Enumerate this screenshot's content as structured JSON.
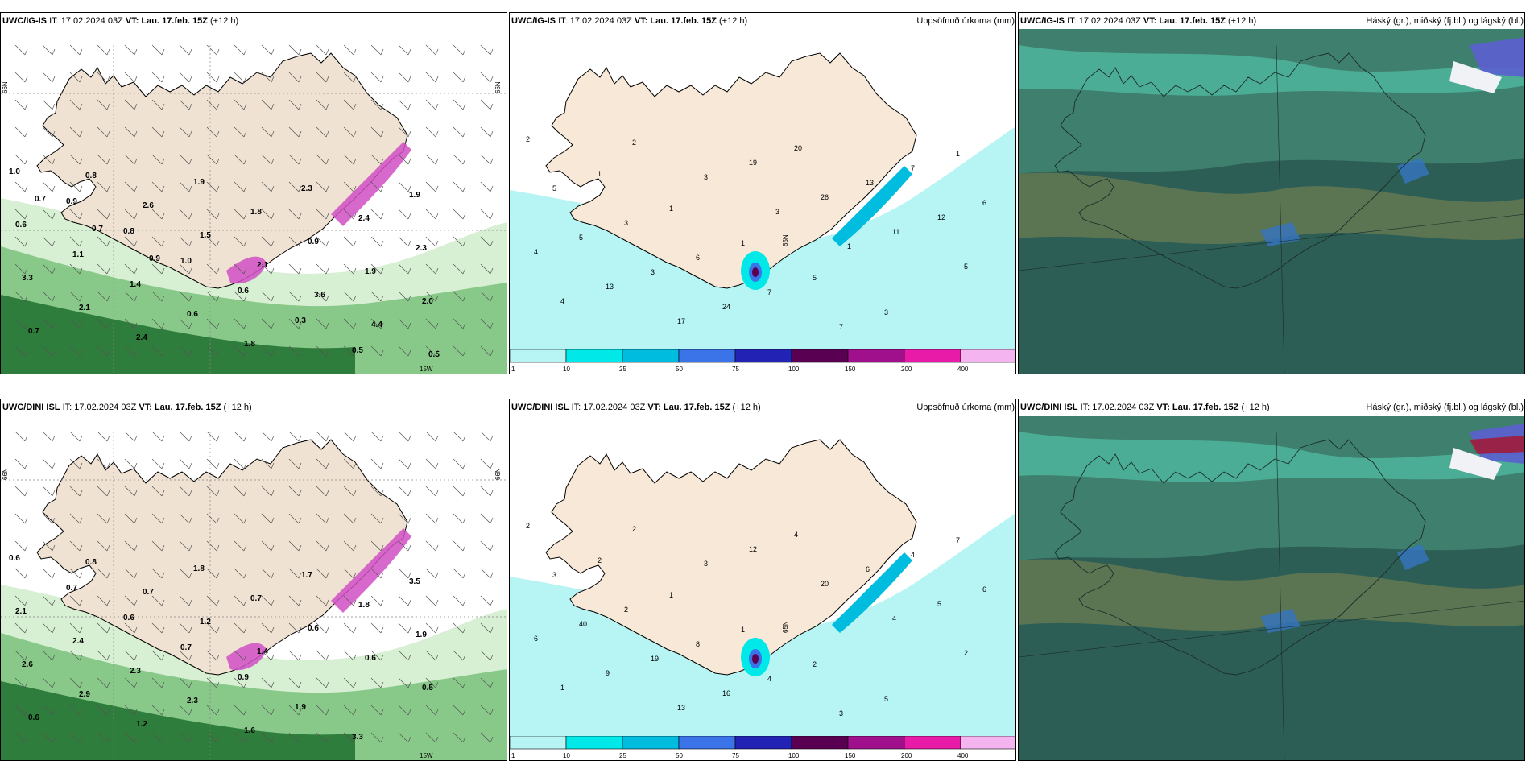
{
  "panels": [
    {
      "model": "UWC/IG-IS",
      "it": "IT: 17.02.2024 03Z",
      "vt_label": "VT:",
      "vt": "Lau. 17.feb. 15Z",
      "lead": "(+12 h)",
      "right": ""
    },
    {
      "model": "UWC/IG-IS",
      "it": "IT: 17.02.2024 03Z",
      "vt_label": "VT:",
      "vt": "Lau. 17.feb. 15Z",
      "lead": "(+12 h)",
      "right": "Uppsöfnuð úrkoma (mm)"
    },
    {
      "model": "UWC/IG-IS",
      "it": "IT: 17.02.2024 03Z",
      "vt_label": "VT:",
      "vt": "Lau. 17.feb. 15Z",
      "lead": "(+12 h)",
      "right": "Háský (gr.), miðský (fj.bl.) og lágský (bl.)"
    },
    {
      "model": "UWC/DINI ISL",
      "it": "IT: 17.02.2024 03Z",
      "vt_label": "VT:",
      "vt": "Lau. 17.feb. 15Z",
      "lead": "(+12 h)",
      "right": ""
    },
    {
      "model": "UWC/DINI ISL",
      "it": "IT: 17.02.2024 03Z",
      "vt_label": "VT:",
      "vt": "Lau. 17.feb. 15Z",
      "lead": "(+12 h)",
      "right": "Uppsöfnuð úrkoma (mm)"
    },
    {
      "model": "UWC/DINI ISL",
      "it": "IT: 17.02.2024 03Z",
      "vt_label": "VT:",
      "vt": "Lau. 17.feb. 15Z",
      "lead": "(+12 h)",
      "right": "Háský (gr.), miðský (fj.bl.) og lágský (bl.)"
    }
  ],
  "axis_labels": {
    "lat": "66N",
    "lat2": "65N",
    "lon": "15W"
  },
  "colorbar": {
    "ticks": [
      "1",
      "10",
      "25",
      "50",
      "75",
      "100",
      "150",
      "200",
      "400"
    ],
    "colors": [
      "#b7f5f5",
      "#00e8e8",
      "#00bde0",
      "#3a74e8",
      "#2222b4",
      "#5a0052",
      "#a0108c",
      "#e81aa8",
      "#f3b4ef"
    ]
  },
  "wind_values_top": [
    "1.0",
    "0.9",
    "0.8",
    "1.0",
    "0.6",
    "0.3",
    "0.5",
    "1.9",
    "0.6",
    "1.1",
    "1.4",
    "0.6",
    "1.8",
    "2.3",
    "2.4",
    "2.3",
    "3.3",
    "2.1",
    "2.4",
    "1.9",
    "1.8",
    "0.9",
    "1.9",
    "2.0",
    "0.7",
    "0.8",
    "2.6",
    "1.5",
    "2.1",
    "3.6",
    "4.4",
    "0.5",
    "0.7",
    "0.7",
    "0.9"
  ],
  "precip_values_top": [
    "2",
    "1",
    "1",
    "1",
    "5",
    "3",
    "1",
    "5",
    "3",
    "6",
    "7",
    "7",
    "7",
    "6",
    "5",
    "3",
    "24",
    "20",
    "13",
    "12",
    "4",
    "13",
    "17",
    "19",
    "26",
    "11",
    "5",
    "4",
    "2",
    "3",
    "3",
    "1"
  ],
  "wind_values_bottom": [
    "0.6",
    "0.7",
    "0.6",
    "0.7",
    "0.9",
    "1.9",
    "3.3",
    "3.5",
    "2.1",
    "2.4",
    "2.3",
    "2.3",
    "1.6",
    "1.7",
    "1.8",
    "1.9",
    "2.6",
    "2.9",
    "1.2",
    "1.8",
    "0.7",
    "0.6",
    "0.6",
    "0.5",
    "0.6",
    "0.8",
    "0.7",
    "1.2",
    "1.4"
  ],
  "precip_values_bottom": [
    "2",
    "2",
    "1",
    "1",
    "2",
    "5",
    "7",
    "3",
    "2",
    "8",
    "4",
    "3",
    "4",
    "6",
    "40",
    "19",
    "16",
    "4",
    "6",
    "5",
    "6",
    "9",
    "13",
    "12",
    "20",
    "4",
    "2",
    "1",
    "2",
    "3"
  ]
}
